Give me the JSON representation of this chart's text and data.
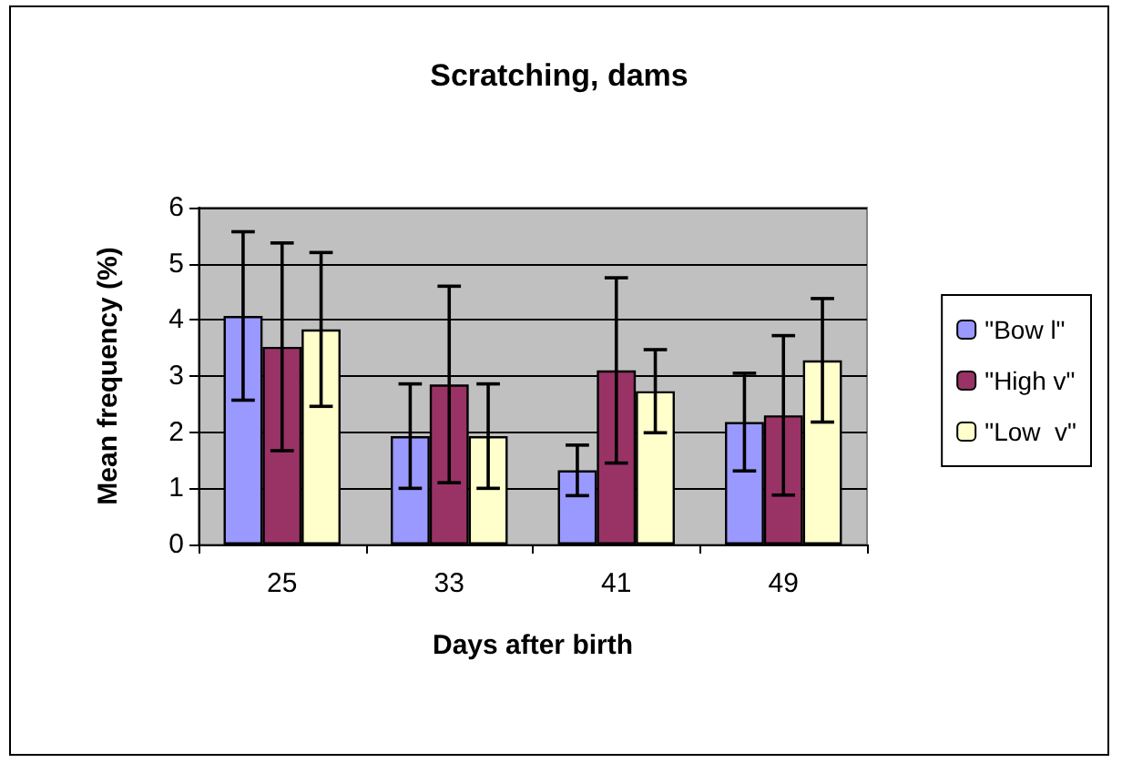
{
  "chart_data": {
    "type": "bar",
    "title": "Scratching, dams",
    "xlabel": "Days after birth",
    "ylabel": "Mean frequency (%)",
    "categories": [
      "25",
      "33",
      "41",
      "49"
    ],
    "series": [
      {
        "name": "\"Bow l\"",
        "color": "#9999ff",
        "values": [
          4.07,
          1.93,
          1.32,
          2.18
        ],
        "errors": [
          1.5,
          0.93,
          0.45,
          0.87
        ]
      },
      {
        "name": "\"High v\"",
        "color": "#993366",
        "values": [
          3.52,
          2.85,
          3.1,
          2.3
        ],
        "errors": [
          1.85,
          1.75,
          1.65,
          1.42
        ]
      },
      {
        "name": "\"Low  v\"",
        "color": "#ffffcc",
        "values": [
          3.83,
          1.93,
          2.73,
          3.28
        ],
        "errors": [
          1.37,
          0.93,
          0.74,
          1.1
        ]
      }
    ],
    "ylim": [
      0,
      6
    ],
    "yticks": [
      0,
      1,
      2,
      3,
      4,
      5,
      6
    ],
    "grid": "y",
    "legend": "right"
  }
}
